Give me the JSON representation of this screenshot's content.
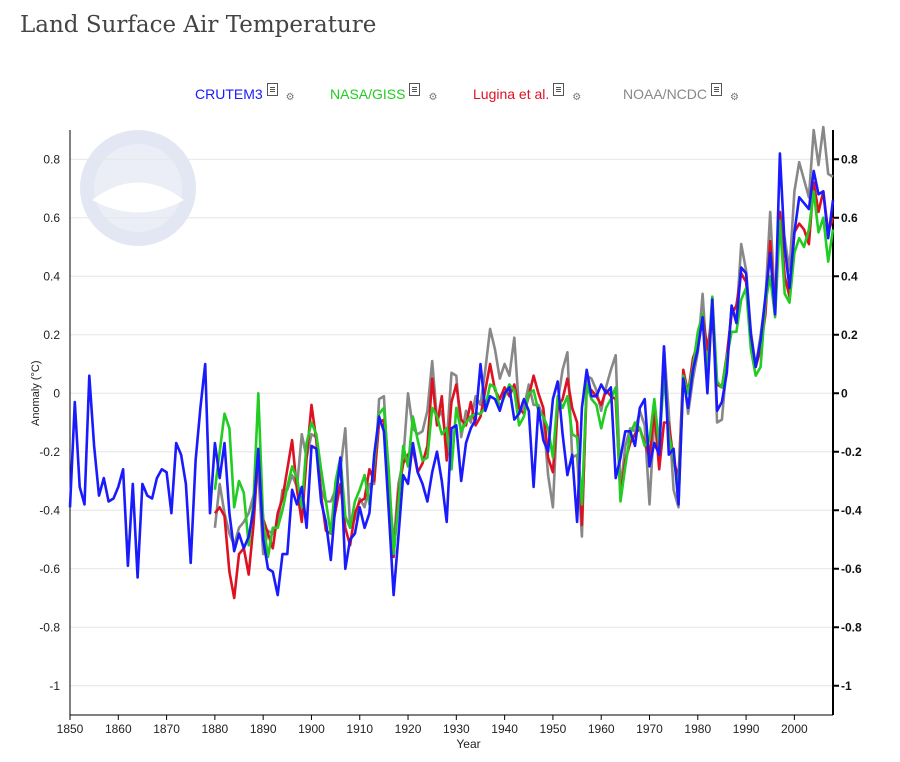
{
  "title": "Land Surface Air Temperature",
  "legend": [
    {
      "name": "CRUTEM3",
      "color": "#1a1aff"
    },
    {
      "name": "NASA/GISS",
      "color": "#22cc22"
    },
    {
      "name": "Lugina et al.",
      "color": "#dd1122"
    },
    {
      "name": "NOAA/NCDC",
      "color": "#888888"
    }
  ],
  "icons": {
    "document": "document-icon",
    "settings": "cog-icon"
  },
  "chart_data": {
    "type": "line",
    "xlabel": "Year",
    "ylabel": "Anomaly (°C)",
    "xlim": [
      1850,
      2008
    ],
    "ylim": [
      -1.1,
      0.9
    ],
    "xticks": [
      1850,
      1860,
      1870,
      1880,
      1890,
      1900,
      1910,
      1920,
      1930,
      1940,
      1950,
      1960,
      1970,
      1980,
      1990,
      2000
    ],
    "yticks": [
      -1,
      -0.8,
      -0.6,
      -0.4,
      -0.2,
      0,
      0.2,
      0.4,
      0.6,
      0.8
    ],
    "ytick_labels": [
      "-1",
      "-0.8",
      "-0.6",
      "-0.4",
      "-0.2",
      "0",
      "0.2",
      "0.4",
      "0.6",
      "0.8"
    ],
    "grid": true,
    "legend_position": "top",
    "logo": "NOAA",
    "series": [
      {
        "name": "NOAA/NCDC",
        "color": "#888888",
        "start_year": 1880,
        "values": [
          -0.46,
          -0.31,
          -0.41,
          -0.48,
          -0.52,
          -0.46,
          -0.44,
          -0.41,
          -0.35,
          -0.27,
          -0.55,
          -0.47,
          -0.48,
          -0.45,
          -0.33,
          -0.33,
          -0.28,
          -0.32,
          -0.14,
          -0.22,
          -0.14,
          -0.15,
          -0.33,
          -0.37,
          -0.37,
          -0.33,
          -0.26,
          -0.12,
          -0.46,
          -0.43,
          -0.36,
          -0.39,
          -0.31,
          -0.31,
          -0.02,
          -0.01,
          -0.3,
          -0.52,
          -0.31,
          -0.23,
          0.0,
          -0.12,
          -0.14,
          -0.13,
          -0.06,
          0.11,
          -0.09,
          -0.06,
          -0.17,
          0.07,
          0.06,
          -0.15,
          -0.06,
          -0.1,
          -0.01,
          -0.04,
          0.08,
          0.22,
          0.15,
          0.05,
          0.1,
          0.06,
          0.19,
          -0.06,
          -0.05,
          0.03,
          -0.04,
          -0.04,
          -0.08,
          -0.28,
          -0.39,
          -0.03,
          0.08,
          0.14,
          -0.22,
          -0.21,
          -0.49,
          0.06,
          0.05,
          0.01,
          -0.06,
          0.02,
          0.08,
          0.13,
          -0.33,
          -0.18,
          -0.12,
          -0.13,
          -0.06,
          -0.11,
          -0.38,
          -0.09,
          -0.17,
          0.16,
          -0.07,
          -0.33,
          -0.39,
          0.07,
          -0.07,
          0.05,
          0.14,
          0.34,
          0.09,
          0.33,
          -0.1,
          -0.09,
          0.1,
          0.29,
          0.25,
          0.51,
          0.42,
          0.21,
          0.09,
          0.2,
          0.32,
          0.62,
          0.29,
          0.62,
          0.53,
          0.42,
          0.69,
          0.79,
          0.73,
          0.67,
          0.9,
          0.78,
          0.91,
          0.75,
          0.74
        ]
      },
      {
        "name": "Lugina et al.",
        "color": "#dd1122",
        "start_year": 1880,
        "values": [
          -0.41,
          -0.39,
          -0.42,
          -0.61,
          -0.7,
          -0.55,
          -0.53,
          -0.62,
          -0.45,
          -0.2,
          -0.43,
          -0.48,
          -0.53,
          -0.41,
          -0.36,
          -0.26,
          -0.16,
          -0.33,
          -0.44,
          -0.22,
          -0.04,
          -0.16,
          -0.35,
          -0.47,
          -0.48,
          -0.4,
          -0.31,
          -0.46,
          -0.52,
          -0.41,
          -0.37,
          -0.36,
          -0.26,
          -0.3,
          -0.1,
          -0.09,
          -0.32,
          -0.56,
          -0.34,
          -0.24,
          -0.21,
          -0.19,
          -0.27,
          -0.24,
          -0.18,
          0.05,
          -0.11,
          -0.01,
          -0.23,
          -0.03,
          0.03,
          -0.09,
          -0.11,
          -0.03,
          -0.11,
          -0.08,
          0.01,
          0.1,
          0.01,
          -0.02,
          0.02,
          -0.01,
          0.03,
          -0.05,
          -0.07,
          -0.01,
          0.06,
          0.0,
          -0.05,
          -0.22,
          -0.27,
          -0.05,
          -0.02,
          0.05,
          -0.05,
          -0.1,
          -0.45,
          0.02,
          0.01,
          -0.01,
          -0.04,
          0.01,
          -0.01,
          -0.02,
          -0.35,
          -0.23,
          -0.17,
          -0.14,
          -0.12,
          -0.17,
          -0.22,
          -0.06,
          -0.26,
          -0.1,
          -0.1,
          -0.23,
          -0.29,
          0.08,
          0.0,
          0.12,
          0.17,
          0.27,
          0.15,
          0.27,
          0.03,
          0.02,
          0.13,
          0.27,
          0.3,
          0.41,
          0.38,
          0.17,
          0.09,
          0.15,
          0.27,
          0.52,
          0.28,
          0.62,
          0.4,
          0.33,
          0.55,
          0.58,
          0.56,
          0.51,
          0.72,
          0.62,
          0.69,
          0.55,
          0.6
        ]
      },
      {
        "name": "NASA/GISS",
        "color": "#22cc22",
        "start_year": 1880,
        "values": [
          -0.33,
          -0.2,
          -0.07,
          -0.12,
          -0.39,
          -0.3,
          -0.34,
          -0.52,
          -0.37,
          0.0,
          -0.44,
          -0.56,
          -0.46,
          -0.46,
          -0.4,
          -0.32,
          -0.25,
          -0.29,
          -0.39,
          -0.17,
          -0.1,
          -0.14,
          -0.26,
          -0.37,
          -0.48,
          -0.3,
          -0.22,
          -0.42,
          -0.46,
          -0.37,
          -0.33,
          -0.28,
          -0.38,
          -0.24,
          -0.07,
          -0.05,
          -0.26,
          -0.55,
          -0.38,
          -0.18,
          -0.25,
          -0.08,
          -0.16,
          -0.23,
          -0.22,
          -0.05,
          -0.08,
          -0.14,
          -0.12,
          -0.26,
          -0.05,
          -0.13,
          -0.1,
          -0.08,
          -0.07,
          -0.07,
          -0.05,
          0.03,
          0.02,
          -0.05,
          -0.01,
          0.03,
          0.01,
          -0.11,
          -0.08,
          0.0,
          0.01,
          -0.06,
          -0.08,
          -0.12,
          -0.22,
          -0.01,
          -0.05,
          -0.01,
          -0.14,
          -0.15,
          -0.38,
          0.03,
          -0.02,
          -0.04,
          -0.12,
          -0.05,
          -0.02,
          0.02,
          -0.37,
          -0.25,
          -0.14,
          -0.1,
          -0.12,
          -0.18,
          -0.16,
          -0.02,
          -0.18,
          0.06,
          -0.14,
          -0.22,
          -0.33,
          0.06,
          0.0,
          0.09,
          0.21,
          0.27,
          0.04,
          0.33,
          0.04,
          0.02,
          0.12,
          0.21,
          0.21,
          0.32,
          0.36,
          0.15,
          0.06,
          0.09,
          0.31,
          0.4,
          0.26,
          0.59,
          0.34,
          0.31,
          0.48,
          0.53,
          0.5,
          0.56,
          0.69,
          0.55,
          0.6,
          0.45,
          0.56
        ]
      },
      {
        "name": "CRUTEM3",
        "color": "#1a1aff",
        "start_year": 1850,
        "values": [
          -0.39,
          -0.03,
          -0.32,
          -0.38,
          0.06,
          -0.18,
          -0.35,
          -0.29,
          -0.37,
          -0.36,
          -0.32,
          -0.26,
          -0.59,
          -0.31,
          -0.63,
          -0.31,
          -0.35,
          -0.36,
          -0.29,
          -0.26,
          -0.27,
          -0.41,
          -0.17,
          -0.21,
          -0.31,
          -0.58,
          -0.23,
          -0.05,
          0.1,
          -0.41,
          -0.17,
          -0.29,
          -0.17,
          -0.41,
          -0.54,
          -0.48,
          -0.53,
          -0.49,
          -0.4,
          -0.19,
          -0.5,
          -0.6,
          -0.61,
          -0.69,
          -0.55,
          -0.55,
          -0.33,
          -0.38,
          -0.32,
          -0.46,
          -0.18,
          -0.19,
          -0.37,
          -0.44,
          -0.57,
          -0.37,
          -0.22,
          -0.6,
          -0.5,
          -0.48,
          -0.39,
          -0.46,
          -0.41,
          -0.21,
          -0.08,
          -0.13,
          -0.4,
          -0.69,
          -0.49,
          -0.28,
          -0.31,
          -0.17,
          -0.27,
          -0.31,
          -0.37,
          -0.27,
          -0.2,
          -0.3,
          -0.44,
          -0.12,
          -0.11,
          -0.3,
          -0.17,
          -0.12,
          -0.09,
          0.1,
          -0.06,
          -0.01,
          -0.02,
          -0.06,
          0.0,
          0.02,
          -0.09,
          -0.07,
          -0.02,
          -0.06,
          -0.32,
          -0.05,
          -0.16,
          -0.2,
          -0.02,
          0.04,
          -0.14,
          -0.28,
          -0.21,
          -0.44,
          -0.05,
          0.08,
          -0.01,
          -0.01,
          0.03,
          0.0,
          0.02,
          -0.29,
          -0.22,
          -0.13,
          -0.13,
          -0.18,
          -0.05,
          -0.02,
          -0.25,
          -0.17,
          -0.21,
          0.16,
          -0.21,
          -0.19,
          -0.38,
          0.05,
          -0.05,
          0.08,
          0.15,
          0.26,
          0.0,
          0.32,
          -0.06,
          -0.03,
          0.07,
          0.3,
          0.24,
          0.43,
          0.41,
          0.2,
          0.09,
          0.18,
          0.33,
          0.48,
          0.27,
          0.82,
          0.5,
          0.36,
          0.55,
          0.67,
          0.65,
          0.63,
          0.76,
          0.68,
          0.69,
          0.53,
          0.66
        ]
      }
    ]
  }
}
